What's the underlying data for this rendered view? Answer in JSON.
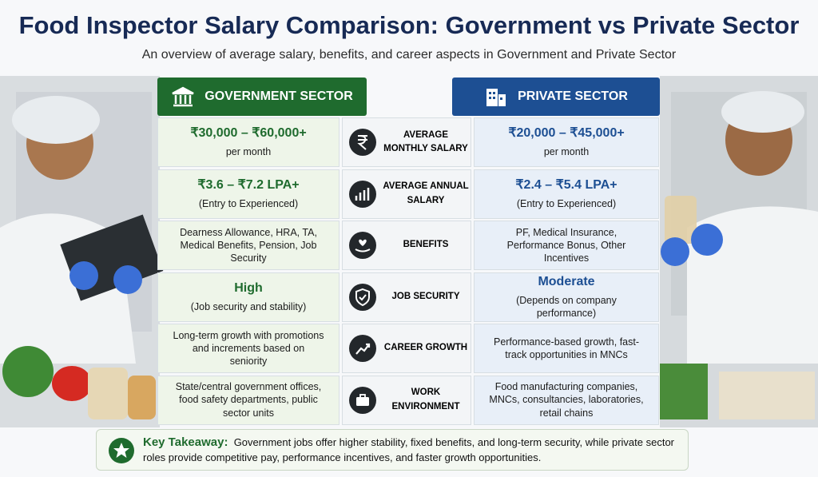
{
  "header": {
    "title": "Food Inspector Salary Comparison: Government vs Private Sector",
    "subtitle": "An overview of average salary, benefits, and career aspects in Government and Private Sector"
  },
  "columns": {
    "government": "GOVERNMENT SECTOR",
    "private": "PRIVATE SECTOR"
  },
  "rows": [
    {
      "label": "AVERAGE MONTHLY SALARY",
      "government": {
        "main": "₹30,000 – ₹60,000+",
        "sub": "per month"
      },
      "private": {
        "main": "₹20,000 – ₹45,000+",
        "sub": "per month"
      }
    },
    {
      "label": "AVERAGE ANNUAL SALARY",
      "government": {
        "main": "₹3.6 – ₹7.2 LPA+",
        "sub": "(Entry to Experienced)"
      },
      "private": {
        "main": "₹2.4 – ₹5.4 LPA+",
        "sub": "(Entry to Experienced)"
      }
    },
    {
      "label": "BENEFITS",
      "government": {
        "text": "Dearness Allowance, HRA, TA, Medical Benefits, Pension, Job Security"
      },
      "private": {
        "text": "PF, Medical Insurance, Performance Bonus, Other Incentives"
      }
    },
    {
      "label": "JOB SECURITY",
      "government": {
        "main": "High",
        "sub": "(Job security and stability)"
      },
      "private": {
        "main": "Moderate",
        "sub": "(Depends on company performance)"
      }
    },
    {
      "label": "CAREER GROWTH",
      "government": {
        "text": "Long-term growth with promotions and increments based on seniority"
      },
      "private": {
        "text": "Performance-based growth, fast-track opportunities in MNCs"
      }
    },
    {
      "label": "WORK ENVIRONMENT",
      "government": {
        "text": "State/central government offices, food safety departments, public sector units"
      },
      "private": {
        "text": "Food manufacturing companies, MNCs, consultancies, laboratories, retail chains"
      }
    }
  ],
  "takeaway": {
    "label": "Key Takeaway:",
    "text": "Government jobs offer higher stability, fixed benefits, and long-term security, while private sector roles provide competitive pay, performance incentives, and faster growth opportunities."
  }
}
